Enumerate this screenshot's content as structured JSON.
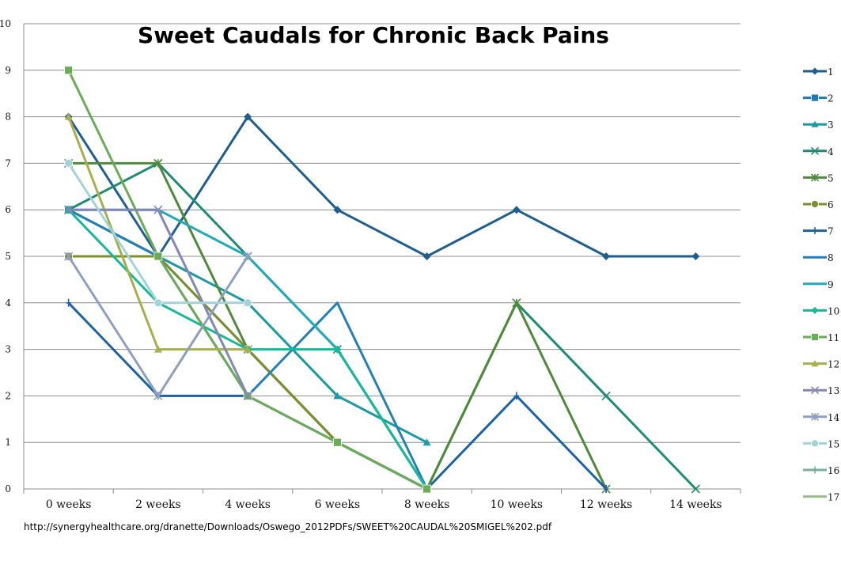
{
  "chart_data": {
    "type": "line",
    "title": "Sweet Caudals for Chronic Back Pains",
    "source_url": "http://synergyhealthcare.org/dranette/Downloads/Oswego_2012PDFs/SWEET%20CAUDAL%20SMIGEL%202.pdf",
    "categories": [
      "0 weeks",
      "2 weeks",
      "4 weeks",
      "6 weeks",
      "8 weeks",
      "10 weeks",
      "12 weeks",
      "14 weeks"
    ],
    "ylim": [
      0,
      10
    ],
    "yticks": [
      "0",
      "1",
      "2",
      "3",
      "4",
      "5",
      "6",
      "7",
      "8",
      "9",
      "10"
    ],
    "grid": true,
    "legend_position": "right",
    "series": [
      {
        "name": "1",
        "color": "#1f5f8f",
        "marker": "diamond",
        "values": [
          8,
          5,
          8,
          6,
          5,
          6,
          5,
          5
        ]
      },
      {
        "name": "2",
        "color": "#1f7ab0",
        "marker": "square",
        "values": [
          6,
          5,
          3,
          1,
          0,
          null,
          null,
          null
        ]
      },
      {
        "name": "3",
        "color": "#1a9aa6",
        "marker": "triangle",
        "values": [
          6,
          5,
          4,
          2,
          1,
          null,
          null,
          null
        ]
      },
      {
        "name": "4",
        "color": "#1e8c72",
        "marker": "x",
        "values": [
          6,
          7,
          5,
          3,
          0,
          4,
          2,
          0
        ]
      },
      {
        "name": "5",
        "color": "#4f8a3c",
        "marker": "star",
        "values": [
          7,
          7,
          3,
          1,
          0,
          4,
          0,
          null
        ]
      },
      {
        "name": "6",
        "color": "#7c8f2e",
        "marker": "circle",
        "values": [
          5,
          5,
          3,
          1,
          0,
          null,
          null,
          null
        ]
      },
      {
        "name": "7",
        "color": "#1d62a3",
        "marker": "plus",
        "values": [
          4,
          2,
          2,
          1,
          0,
          2,
          0,
          null
        ]
      },
      {
        "name": "8",
        "color": "#2580b8",
        "marker": "none",
        "values": [
          6,
          5,
          2,
          4,
          0,
          null,
          null,
          null
        ]
      },
      {
        "name": "9",
        "color": "#22aabb",
        "marker": "none",
        "values": [
          6,
          6,
          5,
          3,
          0,
          null,
          null,
          null
        ]
      },
      {
        "name": "10",
        "color": "#19b89a",
        "marker": "diamond",
        "values": [
          6,
          4,
          3,
          3,
          0,
          null,
          null,
          null
        ]
      },
      {
        "name": "11",
        "color": "#6cab58",
        "marker": "square",
        "values": [
          9,
          5,
          2,
          1,
          0,
          null,
          null,
          null
        ]
      },
      {
        "name": "12",
        "color": "#a7b04a",
        "marker": "triangle",
        "values": [
          8,
          3,
          3,
          null,
          null,
          null,
          null,
          null
        ]
      },
      {
        "name": "13",
        "color": "#8387b6",
        "marker": "x",
        "values": [
          6,
          6,
          2,
          null,
          null,
          null,
          null,
          null
        ]
      },
      {
        "name": "14",
        "color": "#8ea0bd",
        "marker": "star",
        "values": [
          5,
          2,
          5,
          null,
          null,
          null,
          null,
          null
        ]
      },
      {
        "name": "15",
        "color": "#a3d3d8",
        "marker": "circle",
        "values": [
          7,
          4,
          4,
          null,
          null,
          null,
          null,
          null
        ]
      },
      {
        "name": "16",
        "color": "#74b1a0",
        "marker": "plus",
        "values": [
          null,
          null,
          null,
          null,
          null,
          null,
          null,
          null
        ]
      },
      {
        "name": "17",
        "color": "#9cbd8c",
        "marker": "none",
        "values": [
          null,
          null,
          null,
          null,
          null,
          null,
          null,
          null
        ]
      }
    ]
  }
}
